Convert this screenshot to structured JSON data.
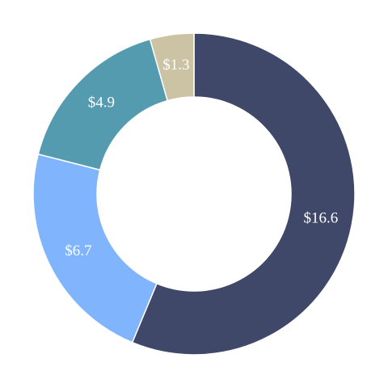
{
  "chart_data": {
    "type": "donut",
    "values": [
      16.6,
      6.7,
      4.9,
      1.3
    ],
    "value_labels": [
      "$16.6",
      "$6.7",
      "$4.9",
      "$1.3"
    ],
    "colors": [
      "#3f4868",
      "#80b4fc",
      "#559bb0",
      "#ccc2a4"
    ]
  }
}
